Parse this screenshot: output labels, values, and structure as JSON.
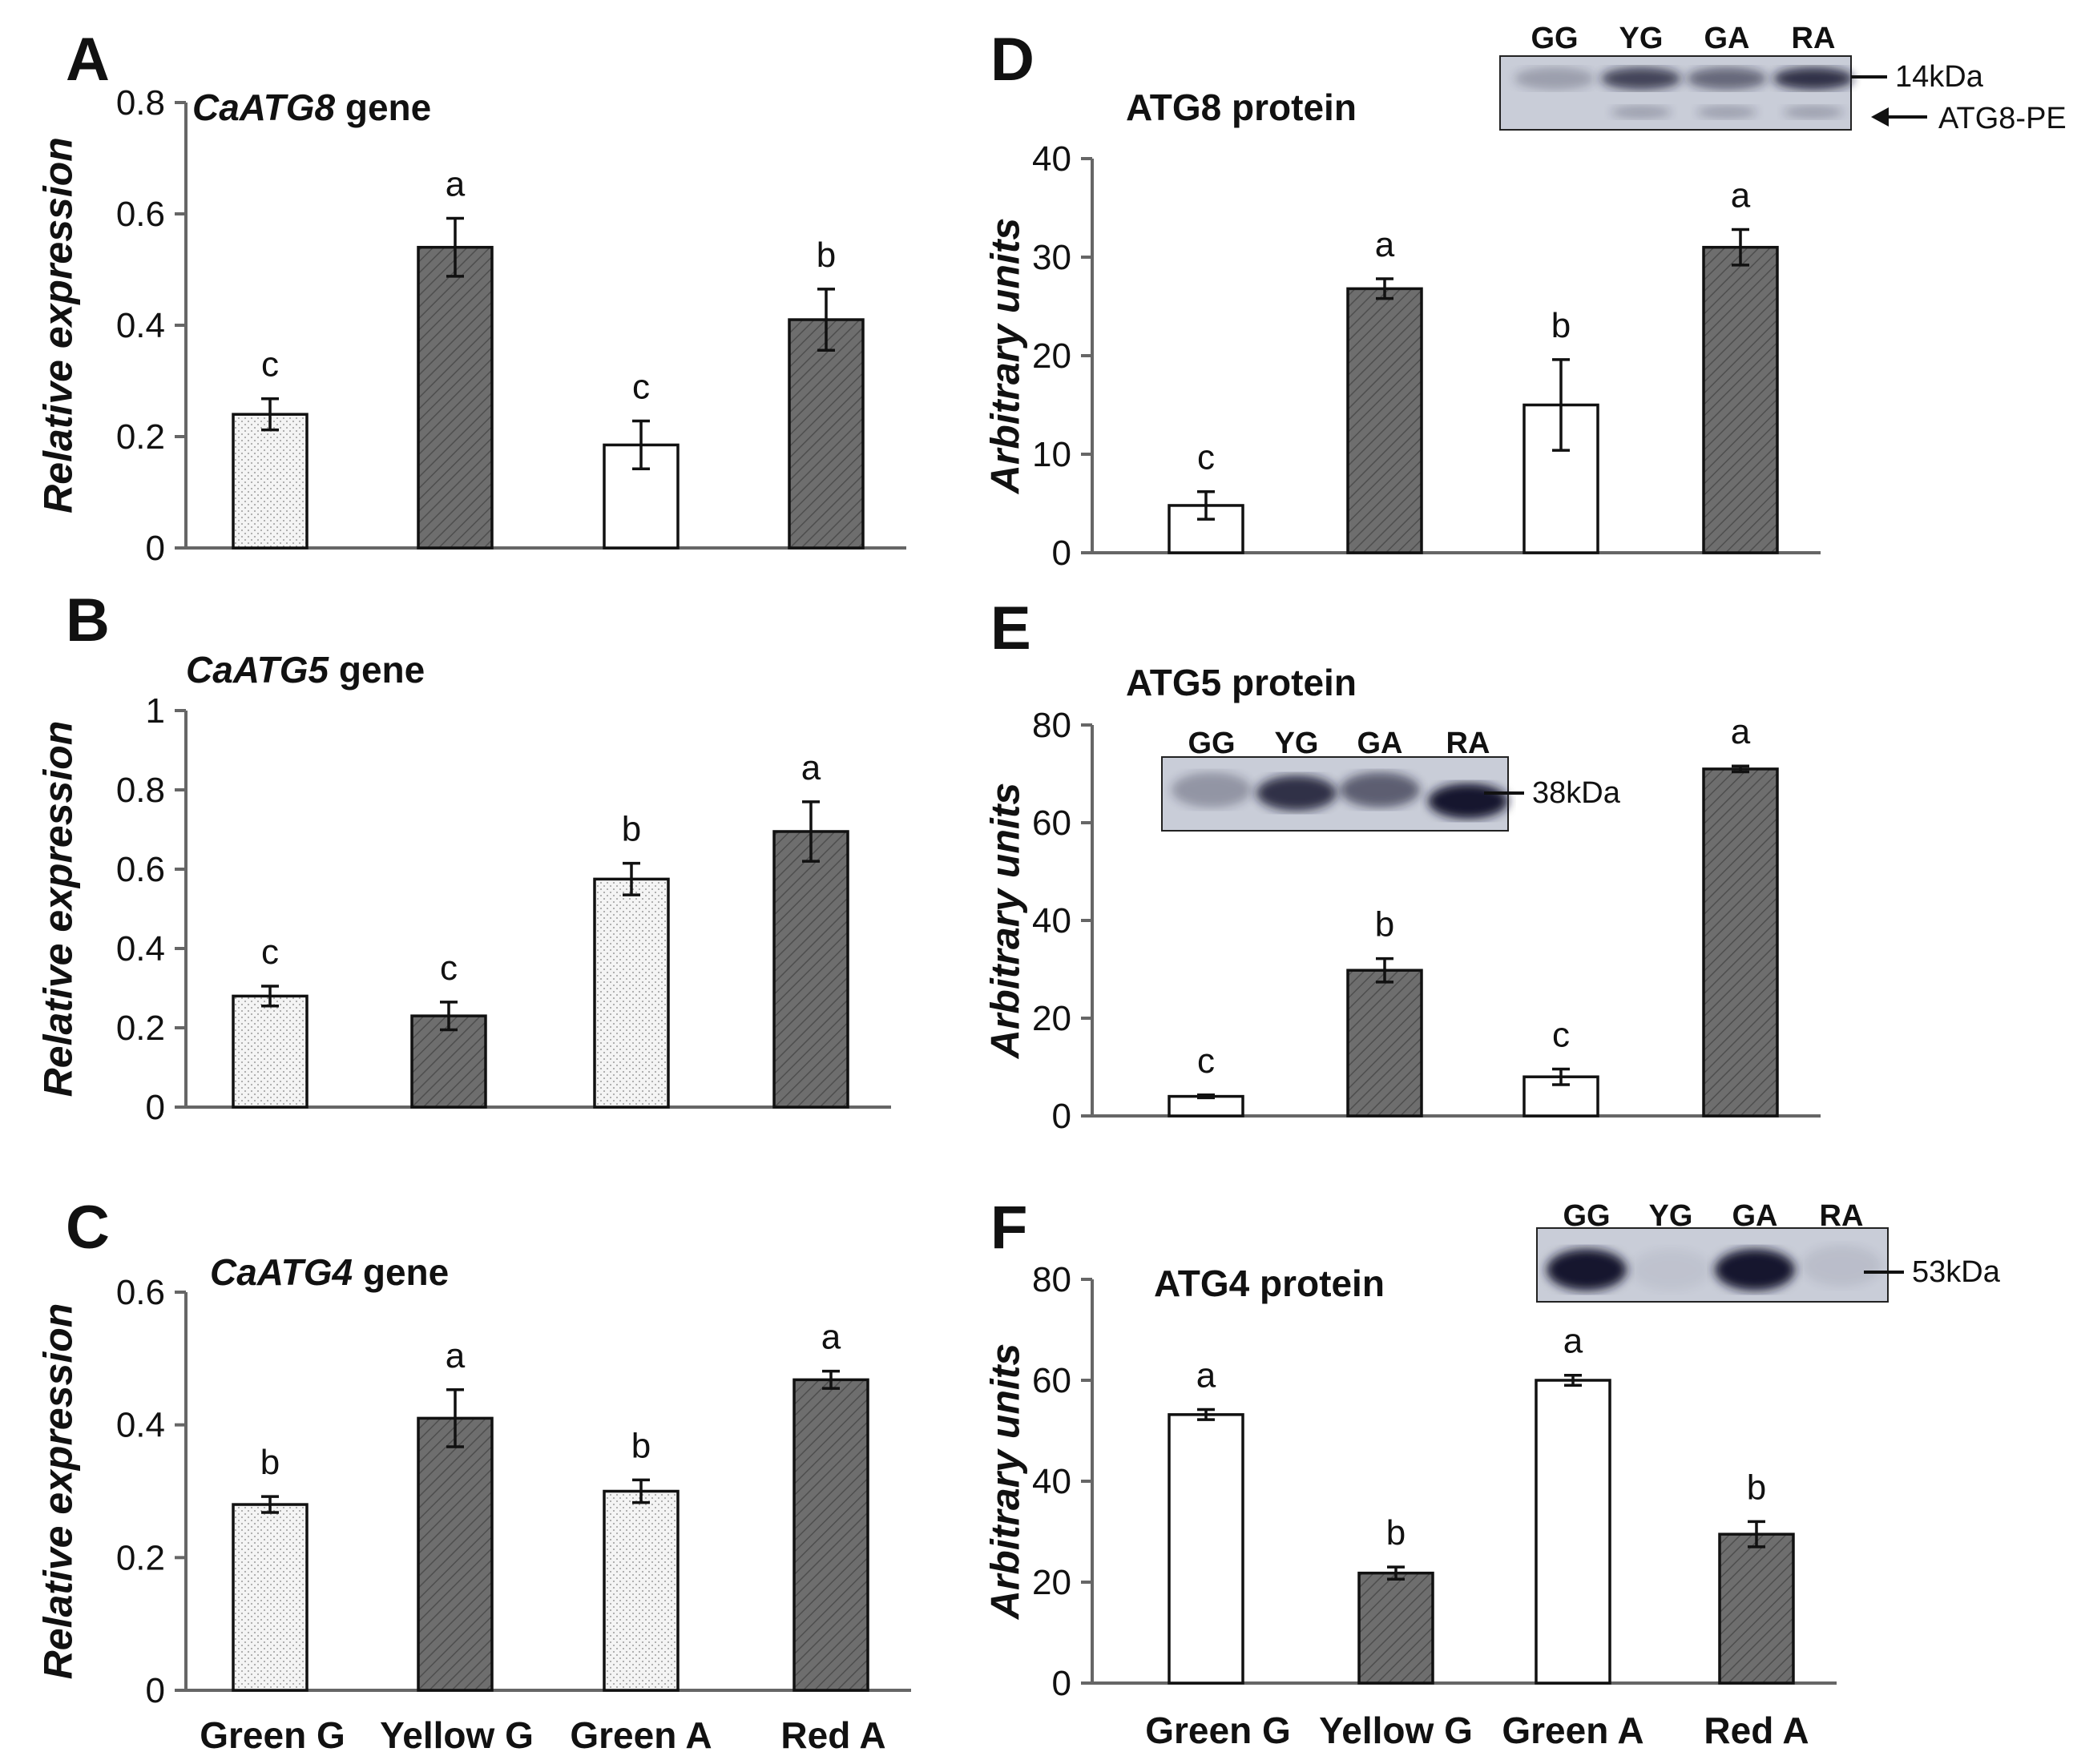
{
  "colors": {
    "light_bar": "#ffffff",
    "dark_bar": "#6e6e6e",
    "dotted_fill": "#f2f2f2",
    "axis": "#666666",
    "blot_bg": "#c8ccd6",
    "band": "#1a1f33"
  },
  "categories_left": [
    "Green G",
    "Yellow G",
    "Green A",
    "Red A"
  ],
  "categories_right": [
    "Green G",
    "Yellow G",
    "Green A",
    "Red A"
  ],
  "chart_data": [
    {
      "id": "A",
      "type": "bar",
      "title_italic": "CaATG8",
      "title_rest": " gene",
      "ylabel": "Relative expression",
      "ylim": [
        0,
        0.8
      ],
      "yticks": [
        "0",
        "0.2",
        "0.4",
        "0.6",
        "0.8"
      ],
      "ytick_values": [
        0,
        0.2,
        0.4,
        0.6,
        0.8
      ],
      "categories": [
        "Green G",
        "Yellow G",
        "Green A",
        "Red A"
      ],
      "values": [
        0.24,
        0.54,
        0.185,
        0.41
      ],
      "errors": [
        0.028,
        0.052,
        0.043,
        0.055
      ],
      "letters": [
        "c",
        "a",
        "c",
        "b"
      ],
      "styles": [
        "dotted",
        "dark",
        "light",
        "dark"
      ]
    },
    {
      "id": "B",
      "type": "bar",
      "title_italic": "CaATG5",
      "title_rest": " gene",
      "ylabel": "Relative expression",
      "ylim": [
        0,
        1
      ],
      "yticks": [
        "0",
        "0.2",
        "0.4",
        "0.6",
        "0.8",
        "1"
      ],
      "ytick_values": [
        0,
        0.2,
        0.4,
        0.6,
        0.8,
        1.0
      ],
      "categories": [
        "Green G",
        "Yellow G",
        "Green A",
        "Red A"
      ],
      "values": [
        0.28,
        0.23,
        0.575,
        0.695
      ],
      "errors": [
        0.025,
        0.035,
        0.04,
        0.075
      ],
      "letters": [
        "c",
        "c",
        "b",
        "a"
      ],
      "styles": [
        "dotted",
        "dark",
        "dotted",
        "dark"
      ]
    },
    {
      "id": "C",
      "type": "bar",
      "title_italic": "CaATG4",
      "title_rest": " gene",
      "ylabel": "Relative expression",
      "ylim": [
        0,
        0.6
      ],
      "yticks": [
        "0",
        "0.2",
        "0.4",
        "0.6"
      ],
      "ytick_values": [
        0,
        0.2,
        0.4,
        0.6
      ],
      "categories": [
        "Green G",
        "Yellow G",
        "Green A",
        "Red A"
      ],
      "values": [
        0.28,
        0.41,
        0.3,
        0.468
      ],
      "errors": [
        0.012,
        0.043,
        0.017,
        0.013
      ],
      "letters": [
        "b",
        "a",
        "b",
        "a"
      ],
      "styles": [
        "dotted",
        "dark",
        "dotted",
        "dark"
      ]
    },
    {
      "id": "D",
      "type": "bar",
      "title_italic": "",
      "title_rest": "ATG8 protein",
      "ylabel": "Arbitrary units",
      "ylim": [
        0,
        40
      ],
      "yticks": [
        "0",
        "10",
        "20",
        "30",
        "40"
      ],
      "ytick_values": [
        0,
        10,
        20,
        30,
        40
      ],
      "categories": [
        "Green G",
        "Yellow G",
        "Green A",
        "Red A"
      ],
      "values": [
        4.8,
        26.8,
        15.0,
        31.0
      ],
      "errors": [
        1.4,
        1.0,
        4.6,
        1.8
      ],
      "letters": [
        "c",
        "a",
        "b",
        "a"
      ],
      "styles": [
        "light",
        "dark",
        "light",
        "dark"
      ]
    },
    {
      "id": "E",
      "type": "bar",
      "title_italic": "",
      "title_rest": "ATG5 protein",
      "ylabel": "Arbitrary units",
      "ylim": [
        0,
        80
      ],
      "yticks": [
        "0",
        "20",
        "40",
        "60",
        "80"
      ],
      "ytick_values": [
        0,
        20,
        40,
        60,
        80
      ],
      "categories": [
        "Green G",
        "Yellow G",
        "Green A",
        "Red A"
      ],
      "values": [
        4.0,
        29.8,
        8.0,
        71.0
      ],
      "errors": [
        0.3,
        2.4,
        1.6,
        0.6
      ],
      "letters": [
        "c",
        "b",
        "c",
        "a"
      ],
      "styles": [
        "light",
        "dark",
        "light",
        "dark"
      ]
    },
    {
      "id": "F",
      "type": "bar",
      "title_italic": "",
      "title_rest": "ATG4 protein",
      "ylabel": "Arbitrary units",
      "ylim": [
        0,
        80
      ],
      "yticks": [
        "0",
        "20",
        "40",
        "60",
        "80"
      ],
      "ytick_values": [
        0,
        20,
        40,
        60,
        80
      ],
      "categories": [
        "Green G",
        "Yellow G",
        "Green A",
        "Red A"
      ],
      "values": [
        53.2,
        21.8,
        60.0,
        29.5
      ],
      "errors": [
        1.0,
        1.2,
        1.0,
        2.5
      ],
      "letters": [
        "a",
        "b",
        "a",
        "b"
      ],
      "styles": [
        "light",
        "dark",
        "light",
        "dark"
      ]
    }
  ],
  "blots": [
    {
      "panel": "D",
      "lanes": [
        "GG",
        "YG",
        "GA",
        "RA"
      ],
      "markers": [
        "14kDa",
        "ATG8-PE"
      ],
      "band_intensity": [
        0.25,
        0.75,
        0.55,
        0.85
      ]
    },
    {
      "panel": "E",
      "lanes": [
        "GG",
        "YG",
        "GA",
        "RA"
      ],
      "markers": [
        "38kDa"
      ],
      "band_intensity": [
        0.3,
        0.85,
        0.6,
        1.0
      ]
    },
    {
      "panel": "F",
      "lanes": [
        "GG",
        "YG",
        "GA",
        "RA"
      ],
      "markers": [
        "53kDa"
      ],
      "band_intensity": [
        1.0,
        0.05,
        1.0,
        0.08
      ]
    }
  ]
}
